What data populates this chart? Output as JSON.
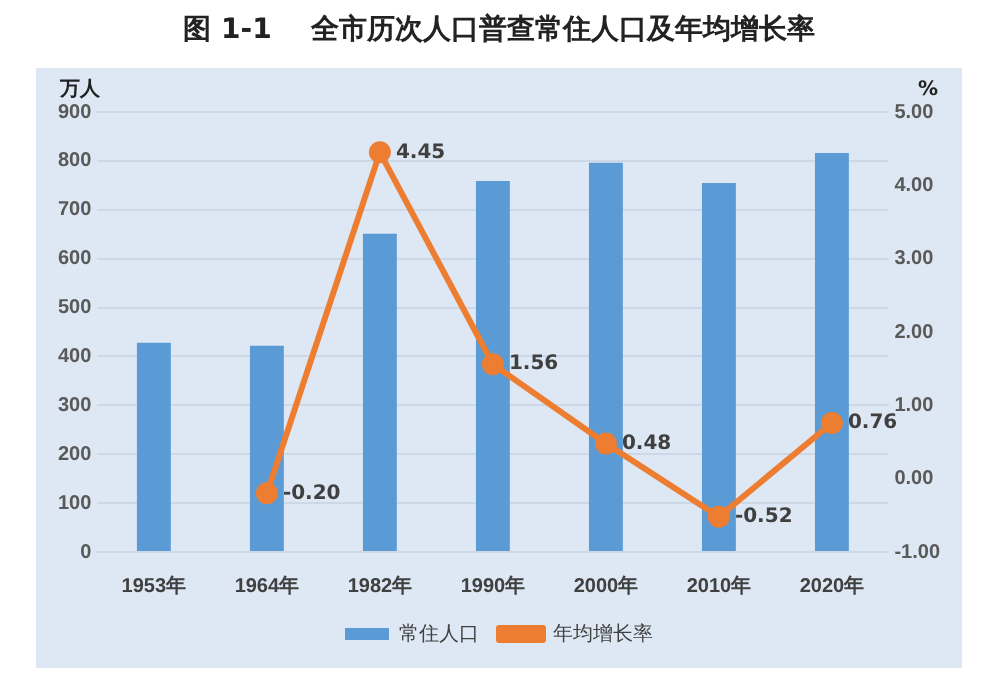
{
  "chart_data": {
    "type": "bar",
    "title": "图 1-1    全市历次人口普查常住人口及年均增长率",
    "ylabel": "万人",
    "y2label": "%",
    "categories": [
      "1953年",
      "1964年",
      "1982年",
      "1990年",
      "2000年",
      "2010年",
      "2020年"
    ],
    "series": [
      {
        "name": "常住人口",
        "color": "#5b9bd5",
        "values": [
          428,
          422,
          651,
          759,
          796,
          755,
          816
        ]
      },
      {
        "name": "年均增长率",
        "type": "line",
        "axis": "y2",
        "color": "#ed7d31",
        "values": [
          null,
          -0.2,
          4.45,
          1.56,
          0.48,
          -0.52,
          0.76
        ],
        "value_labels": [
          null,
          "-0.20",
          "4.45",
          "1.56",
          "0.48",
          "-0.52",
          "0.76"
        ]
      }
    ],
    "ylim": [
      0,
      900
    ],
    "yticks": [
      0,
      100,
      200,
      300,
      400,
      500,
      600,
      700,
      800,
      900
    ],
    "y2lim": [
      -1,
      5
    ],
    "y2ticks": [
      {
        "value": -1,
        "label": "-1.00"
      },
      {
        "value": 0,
        "label": "0.00"
      },
      {
        "value": 1,
        "label": "1.00"
      },
      {
        "value": 2,
        "label": "2.00"
      },
      {
        "value": 3,
        "label": "3.00"
      },
      {
        "value": 4,
        "label": "4.00"
      },
      {
        "value": 5,
        "label": "5.00"
      }
    ],
    "grid": "y",
    "legend": "bottom",
    "marker": "circle",
    "line_style": "solid"
  }
}
